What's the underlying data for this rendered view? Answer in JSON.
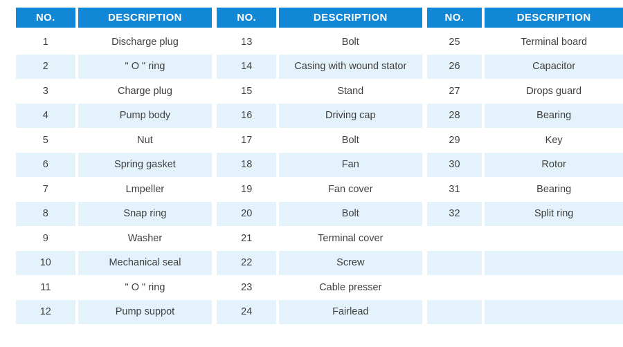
{
  "colors": {
    "page_bg": "#ffffff",
    "header_bg": "#1287d6",
    "header_text": "#ffffff",
    "row_alt_bg": "#e4f2fc",
    "row_text": "#3f3f3f"
  },
  "table": {
    "column_headers": [
      "NO.",
      "DESCRIPTION"
    ],
    "groups": [
      {
        "rows": [
          [
            "1",
            "Discharge plug"
          ],
          [
            "2",
            "\" O \" ring"
          ],
          [
            "3",
            "Charge plug"
          ],
          [
            "4",
            "Pump body"
          ],
          [
            "5",
            "Nut"
          ],
          [
            "6",
            "Spring gasket"
          ],
          [
            "7",
            "Lmpeller"
          ],
          [
            "8",
            "Snap ring"
          ],
          [
            "9",
            "Washer"
          ],
          [
            "10",
            "Mechanical seal"
          ],
          [
            "11",
            "\" O \" ring"
          ],
          [
            "12",
            "Pump suppot"
          ]
        ]
      },
      {
        "rows": [
          [
            "13",
            "Bolt"
          ],
          [
            "14",
            "Casing with wound stator"
          ],
          [
            "15",
            "Stand"
          ],
          [
            "16",
            "Driving cap"
          ],
          [
            "17",
            "Bolt"
          ],
          [
            "18",
            "Fan"
          ],
          [
            "19",
            "Fan cover"
          ],
          [
            "20",
            "Bolt"
          ],
          [
            "21",
            "Terminal cover"
          ],
          [
            "22",
            "Screw"
          ],
          [
            "23",
            "Cable presser"
          ],
          [
            "24",
            "Fairlead"
          ]
        ]
      },
      {
        "rows": [
          [
            "25",
            "Terminal board"
          ],
          [
            "26",
            "Capacitor"
          ],
          [
            "27",
            "Drops guard"
          ],
          [
            "28",
            "Bearing"
          ],
          [
            "29",
            "Key"
          ],
          [
            "30",
            "Rotor"
          ],
          [
            "31",
            "Bearing"
          ],
          [
            "32",
            "Split ring"
          ],
          [
            "",
            ""
          ],
          [
            "",
            ""
          ],
          [
            "",
            ""
          ],
          [
            "",
            ""
          ]
        ]
      }
    ]
  }
}
